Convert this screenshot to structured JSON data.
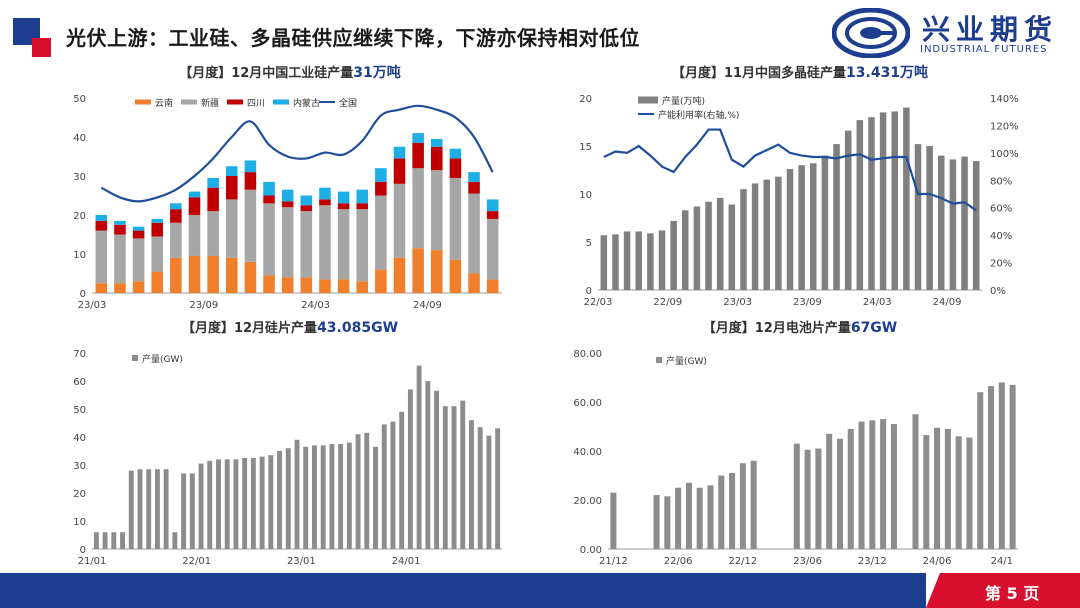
{
  "header": {
    "title": "光伏上游：工业硅、多晶硅供应继续下降，下游亦保持相对低位",
    "logo_cn": "兴业期货",
    "logo_en": "INDUSTRIAL FUTURES"
  },
  "footer": {
    "page": "第 5 页"
  },
  "titles": {
    "c1": {
      "prefix": "【月度】12月中国工业硅产量",
      "highlight": "31万吨"
    },
    "c2": {
      "prefix": "【月度】11月中国多晶硅产量",
      "highlight": "13.431万吨"
    },
    "c3": {
      "prefix": "【月度】12月硅片产量",
      "highlight": "43.085GW"
    },
    "c4": {
      "prefix": "【月度】12月电池片产量",
      "highlight": "67GW"
    }
  },
  "colors": {
    "orange": "#f07f2c",
    "gray": "#a6a6a6",
    "darkgray": "#7f7f7f",
    "red": "#c00000",
    "cyan": "#1eaee6",
    "navy": "#1f4e9c",
    "brand_blue": "#1d3d8f",
    "brand_red": "#d8102e"
  },
  "chart_data": [
    {
      "id": "c1",
      "type": "bar",
      "stacked": true,
      "legend": [
        "云南",
        "新疆",
        "四川",
        "内蒙古",
        "全国"
      ],
      "ylim": [
        0,
        50
      ],
      "yticks": [
        0,
        10,
        20,
        30,
        40,
        50
      ],
      "xticks": [
        {
          "i": 0,
          "label": "23/03"
        },
        {
          "i": 6,
          "label": "23/09"
        },
        {
          "i": 12,
          "label": "24/03"
        },
        {
          "i": 18,
          "label": "24/09"
        }
      ],
      "categories": [
        "23/03",
        "23/04",
        "23/05",
        "23/06",
        "23/07",
        "23/08",
        "23/09",
        "23/10",
        "23/11",
        "23/12",
        "24/01",
        "24/02",
        "24/03",
        "24/04",
        "24/05",
        "24/06",
        "24/07",
        "24/08",
        "24/09",
        "24/10",
        "24/11",
        "24/12"
      ],
      "series": [
        {
          "name": "云南",
          "kind": "bar",
          "color": "#f07f2c",
          "values": [
            2.5,
            2.5,
            3,
            5.5,
            9,
            9.5,
            9.5,
            9,
            8,
            4.5,
            4,
            4,
            3.5,
            3.5,
            3,
            6,
            9,
            11.5,
            11,
            8.5,
            5,
            3.5
          ]
        },
        {
          "name": "新疆",
          "kind": "bar",
          "color": "#a6a6a6",
          "values": [
            13.5,
            12.5,
            11,
            9,
            9,
            10.5,
            11.5,
            15,
            18.5,
            18.5,
            18,
            17,
            19,
            18,
            18.5,
            19,
            19,
            20.5,
            20.5,
            21,
            20.5,
            15.5
          ]
        },
        {
          "name": "四川",
          "kind": "bar",
          "color": "#c00000",
          "values": [
            2.5,
            2.5,
            2,
            3.5,
            3.5,
            4.5,
            6,
            6,
            4.5,
            2,
            1.5,
            1.5,
            1.5,
            1.5,
            1.5,
            3.5,
            6.5,
            6.5,
            6,
            5,
            3,
            2
          ]
        },
        {
          "name": "内蒙古",
          "kind": "bar",
          "color": "#1eaee6",
          "values": [
            1.5,
            1,
            1,
            1,
            1.5,
            1.5,
            2.5,
            2.5,
            3,
            3.5,
            3,
            2.5,
            3,
            3,
            3.5,
            3.5,
            3,
            2.5,
            2,
            2.5,
            2.5,
            3
          ]
        },
        {
          "name": "全国",
          "kind": "line",
          "color": "#1f4e9c",
          "values": [
            27,
            24.5,
            23.5,
            24.5,
            26.5,
            30,
            34.5,
            40,
            44,
            38,
            35,
            34.5,
            36,
            35.5,
            39,
            45.5,
            47,
            48,
            47,
            45,
            40,
            31
          ]
        }
      ]
    },
    {
      "id": "c2",
      "type": "bar",
      "dual_axis": true,
      "legend": [
        "产量(万吨)",
        "产能利用率(右轴,%)"
      ],
      "ylim": [
        0,
        20
      ],
      "yticks": [
        0,
        5,
        10,
        15,
        20
      ],
      "ylim_right": [
        0,
        140
      ],
      "yticks_right": [
        "0%",
        "20%",
        "40%",
        "60%",
        "80%",
        "100%",
        "120%",
        "140%"
      ],
      "xticks": [
        {
          "i": 0,
          "label": "22/03"
        },
        {
          "i": 6,
          "label": "22/09"
        },
        {
          "i": 12,
          "label": "23/03"
        },
        {
          "i": 18,
          "label": "23/09"
        },
        {
          "i": 24,
          "label": "24/03"
        },
        {
          "i": 30,
          "label": "24/09"
        }
      ],
      "series": [
        {
          "name": "产量(万吨)",
          "kind": "bar",
          "color": "#7f7f7f",
          "values": [
            5.7,
            5.8,
            6.1,
            6.1,
            5.9,
            6.2,
            7.2,
            8.3,
            8.7,
            9.2,
            9.6,
            8.9,
            10.5,
            11.1,
            11.5,
            11.8,
            12.6,
            13,
            13.2,
            14,
            15.2,
            16.6,
            17.7,
            18,
            18.5,
            18.6,
            19,
            15.2,
            15,
            14,
            13.6,
            13.9,
            13.431
          ]
        },
        {
          "name": "产能利用率(右轴,%)",
          "kind": "line",
          "color": "#1f4e9c",
          "axis": "right",
          "values": [
            97,
            101,
            100,
            105,
            98,
            90,
            86,
            97,
            106,
            117,
            117,
            95,
            90,
            98,
            102,
            106,
            100,
            98,
            97,
            97,
            96,
            98,
            99,
            95,
            96,
            97,
            97,
            70,
            70,
            67,
            63,
            64,
            58
          ]
        }
      ]
    },
    {
      "id": "c3",
      "type": "bar",
      "legend": [
        "产量(GW)"
      ],
      "ylim": [
        0,
        70
      ],
      "yticks": [
        0,
        10,
        20,
        30,
        40,
        50,
        60,
        70
      ],
      "xticks": [
        {
          "i": 0,
          "label": "21/01"
        },
        {
          "i": 12,
          "label": "22/01"
        },
        {
          "i": 24,
          "label": "23/01"
        },
        {
          "i": 36,
          "label": "24/01"
        }
      ],
      "series": [
        {
          "name": "产量(GW)",
          "kind": "bar",
          "color": "#8c8c8c",
          "values": [
            6,
            6,
            6,
            6,
            28,
            28.5,
            28.5,
            28.5,
            28.5,
            6,
            27,
            27,
            30.5,
            31.5,
            32,
            32,
            32,
            32.5,
            32.5,
            33,
            33.5,
            35,
            36,
            39,
            36.5,
            37,
            37,
            37.5,
            37.5,
            38,
            41,
            41.5,
            36.5,
            44.5,
            45.5,
            49,
            57,
            65.5,
            60,
            56.5,
            51,
            51,
            53,
            46,
            43.5,
            40.5,
            43.085
          ]
        }
      ]
    },
    {
      "id": "c4",
      "type": "bar",
      "legend": [
        "产量(GW)"
      ],
      "ylim": [
        0,
        80
      ],
      "yticks": [
        "0.00",
        "20.00",
        "40.00",
        "60.00",
        "80.00"
      ],
      "xticks": [
        {
          "i": 0,
          "label": "21/12"
        },
        {
          "i": 6,
          "label": "22/06"
        },
        {
          "i": 12,
          "label": "22/12"
        },
        {
          "i": 18,
          "label": "23/06"
        },
        {
          "i": 24,
          "label": "23/12"
        },
        {
          "i": 30,
          "label": "24/06"
        },
        {
          "i": 36,
          "label": "24/1"
        }
      ],
      "series": [
        {
          "name": "产量(GW)",
          "kind": "bar",
          "color": "#8c8c8c",
          "values": [
            23,
            null,
            null,
            null,
            22,
            21.5,
            25,
            27,
            25,
            26,
            30,
            31,
            35,
            36,
            null,
            null,
            null,
            43,
            40.5,
            41,
            47,
            45,
            49,
            52,
            52.5,
            53,
            51,
            null,
            55,
            46.5,
            49.5,
            49,
            46,
            45.5,
            64,
            66.5,
            68,
            67
          ]
        }
      ]
    }
  ]
}
